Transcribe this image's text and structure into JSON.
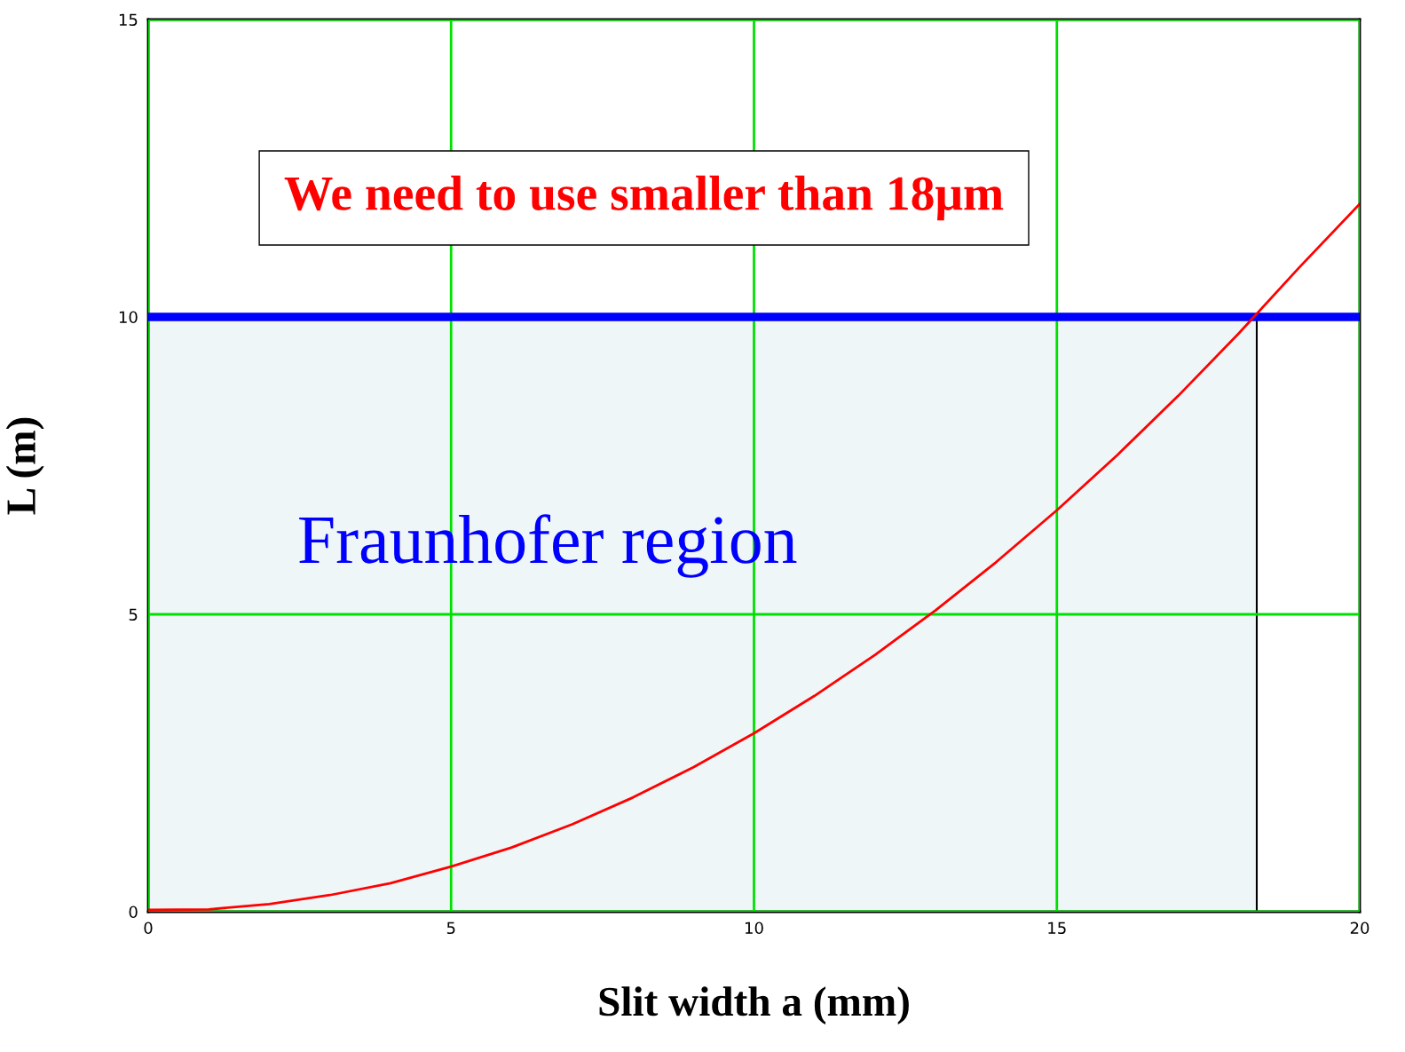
{
  "chart_data": {
    "type": "line",
    "xlabel": "Slit width a (mm)",
    "ylabel": "L (m)",
    "xlim": [
      0,
      20
    ],
    "ylim": [
      0,
      15
    ],
    "xticks": [
      0,
      5,
      10,
      15,
      20
    ],
    "yticks": [
      0,
      5,
      10,
      15
    ],
    "grid": true,
    "series": [
      {
        "type": "area",
        "color": "#eef6f8",
        "x": [
          0,
          18.3
        ],
        "values": [
          10,
          10
        ]
      },
      {
        "color": "#ff0000",
        "x": [
          0,
          1,
          2,
          3,
          4,
          5,
          6,
          7,
          8,
          9,
          10,
          11,
          12,
          13,
          14,
          15,
          16,
          17,
          18,
          19,
          20
        ],
        "values": [
          0.03,
          0.04,
          0.13,
          0.28,
          0.48,
          0.76,
          1.08,
          1.47,
          1.92,
          2.43,
          3.0,
          3.63,
          4.32,
          5.07,
          5.88,
          6.75,
          7.68,
          8.67,
          9.72,
          10.83,
          11.9
        ]
      }
    ],
    "ref_lines": [
      {
        "axis": "y",
        "value": 10,
        "color": "#0000ff",
        "line_style": "solid"
      }
    ],
    "annotations": [
      "We need to use smaller than 18μm",
      "Fraunhofer region"
    ]
  }
}
